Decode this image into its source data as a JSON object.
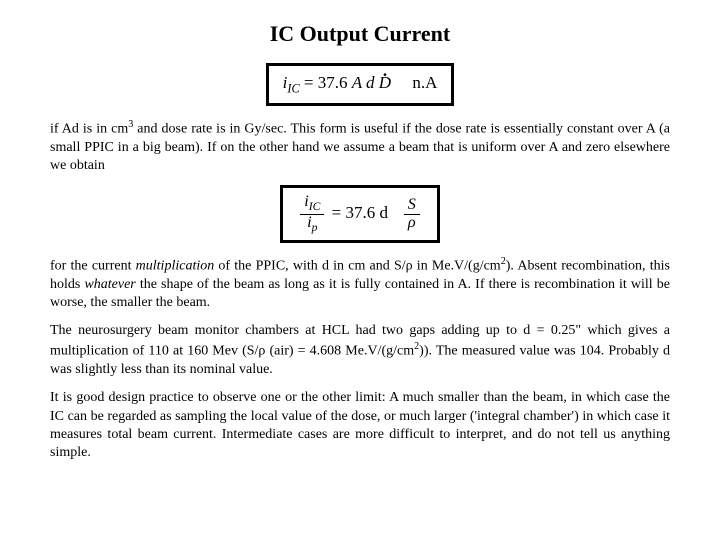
{
  "title": "IC Output Current",
  "formula1": {
    "lhs_var": "i",
    "lhs_sub": "IC",
    "eq": " = ",
    "coef": "37.6",
    "terms": " A d ",
    "Ddot": "D",
    "unit": "n.A"
  },
  "para1_a": "if Ad is in cm",
  "para1_sup1": "3",
  "para1_b": " and dose rate is in Gy/sec. This form is useful if the dose rate is essentially constant over A (a small PPIC in a big beam). If on the other hand we assume a beam that is uniform over A and zero elsewhere we obtain",
  "formula2": {
    "num_var": "i",
    "num_sub": "IC",
    "den_var": "i",
    "den_sub": "p",
    "eq": " = ",
    "coef": "37.6 d",
    "S": "S",
    "rho": "ρ"
  },
  "para2_a": "for the current ",
  "para2_mult": "multiplication",
  "para2_b": "   of the PPIC, with d  in cm and S/ρ  in Me.V/(g/cm",
  "para2_sup1": "2",
  "para2_c": "). Absent recombination, this holds ",
  "para2_what": "whatever",
  "para2_d": "   the shape of the beam as long as it is fully contained in A. If there is recombination it will be worse, the smaller the beam.",
  "para3_a": "The neurosurgery beam monitor chambers at HCL had two gaps adding up to d = 0.25\" which gives a multiplication of 110 at 160 Mev (S/ρ (air)  = 4.608 Me.V/(g/cm",
  "para3_sup1": "2",
  "para3_b": ")). The measured value was 104. Probably d was slightly less than its nominal value.",
  "para4": "It is good design practice to observe one or the other limit: A much smaller than the beam, in which case the IC can be regarded as sampling the local value of the dose, or much larger ('integral chamber') in which case it measures total beam current. Intermediate cases are more difficult to interpret, and do not tell us anything simple."
}
